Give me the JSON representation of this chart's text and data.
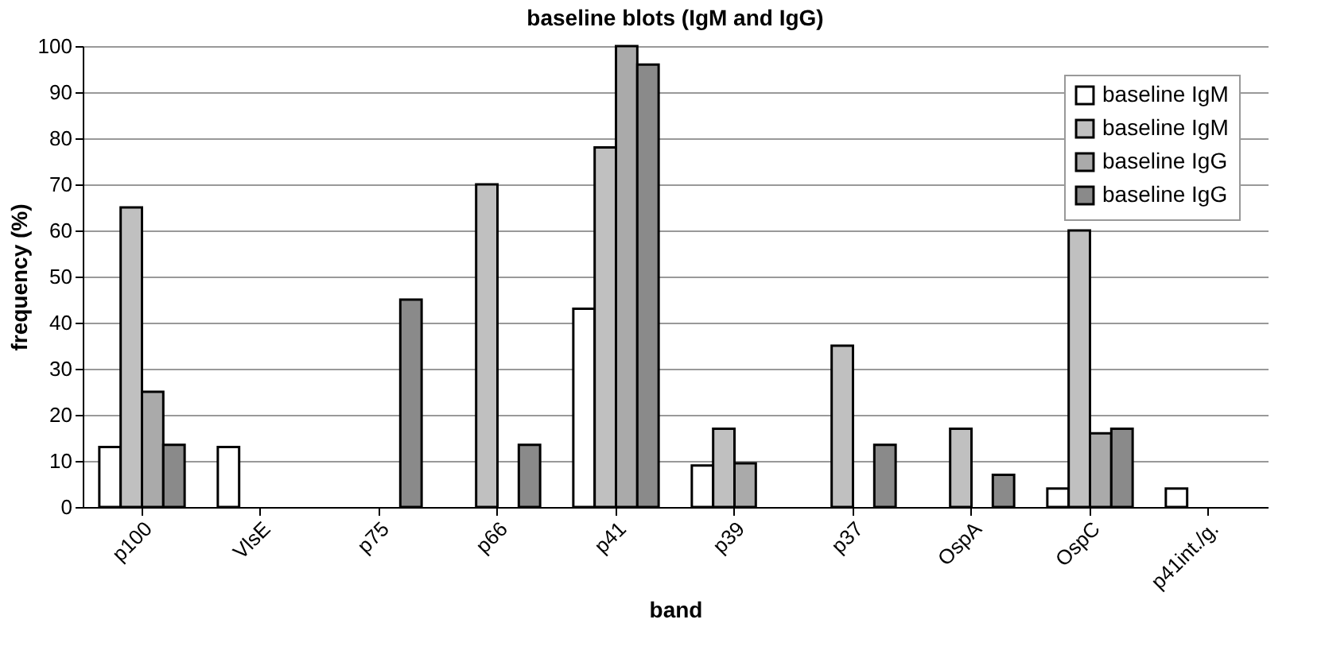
{
  "chart_data": {
    "type": "bar",
    "title": "baseline blots (IgM and IgG)",
    "xlabel": "band",
    "ylabel": "frequency (%)",
    "categories": [
      "p100",
      "VlsE",
      "p75",
      "p66",
      "p41",
      "p39",
      "p37",
      "OspA",
      "OspC",
      "p41int./g."
    ],
    "series": [
      {
        "name": "baseline IgM",
        "color": "#ffffff",
        "values": [
          13,
          13,
          null,
          null,
          43,
          9,
          null,
          null,
          4,
          4
        ]
      },
      {
        "name": "baseline IgM",
        "color": "#c0c0c0",
        "values": [
          65,
          null,
          null,
          70,
          78,
          17,
          35,
          17,
          60,
          null
        ]
      },
      {
        "name": "baseline IgG",
        "color": "#aaaaaa",
        "values": [
          25,
          null,
          null,
          null,
          100,
          9.5,
          null,
          null,
          16,
          null
        ]
      },
      {
        "name": "baseline IgG",
        "color": "#8a8a8a",
        "values": [
          13.5,
          null,
          45,
          13.5,
          96,
          null,
          13.5,
          7,
          17,
          null
        ]
      }
    ],
    "ylim": [
      0,
      100
    ],
    "yticks": [
      0,
      10,
      20,
      30,
      40,
      50,
      60,
      70,
      80,
      90,
      100
    ],
    "grid": "y",
    "legend": "top right"
  }
}
